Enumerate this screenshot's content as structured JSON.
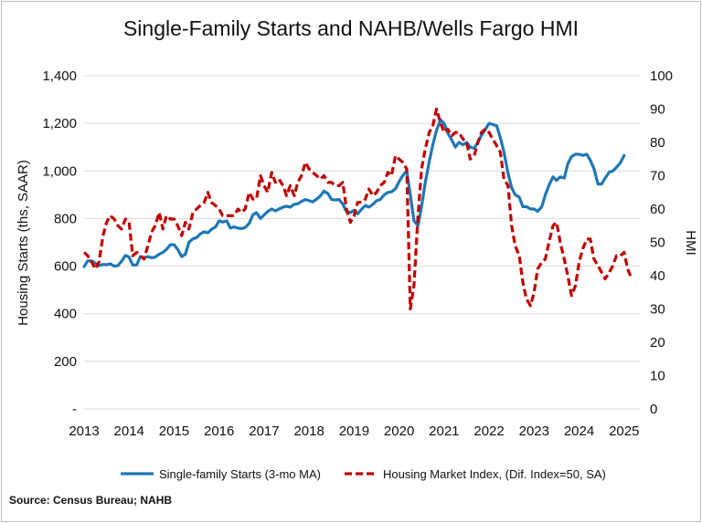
{
  "chart_data": {
    "type": "line",
    "title": "Single-Family Starts and NAHB/Wells Fargo HMI",
    "xlabel": "",
    "ylabel_left": "Housing Starts (ths, SAAR)",
    "ylabel_right": "HMI",
    "source": "Source: Census Bureau; NAHB",
    "x_ticks": [
      "2013",
      "2014",
      "2015",
      "2016",
      "2017",
      "2018",
      "2019",
      "2020",
      "2021",
      "2022",
      "2023",
      "2024",
      "2025"
    ],
    "y_left_ticks": [
      "-",
      "200",
      "400",
      "600",
      "800",
      "1,000",
      "1,200",
      "1,400"
    ],
    "y_right_ticks": [
      "0",
      "10",
      "20",
      "30",
      "40",
      "50",
      "60",
      "70",
      "80",
      "90",
      "100"
    ],
    "ylim_left": [
      0,
      1400
    ],
    "ylim_right": [
      0,
      100
    ],
    "xlim": [
      2013,
      2025.35
    ],
    "grid": "horizontal",
    "legend_position": "bottom",
    "series": [
      {
        "name": "Single-family Starts (3-mo MA)",
        "axis": "left",
        "color": "#1f77b4",
        "style": "solid",
        "points": [
          [
            2013.0,
            598
          ],
          [
            2013.08,
            622
          ],
          [
            2013.17,
            622
          ],
          [
            2013.25,
            612
          ],
          [
            2013.33,
            602
          ],
          [
            2013.42,
            607
          ],
          [
            2013.5,
            606
          ],
          [
            2013.58,
            610
          ],
          [
            2013.67,
            600
          ],
          [
            2013.75,
            602
          ],
          [
            2013.83,
            620
          ],
          [
            2013.92,
            645
          ],
          [
            2014.0,
            638
          ],
          [
            2014.08,
            605
          ],
          [
            2014.17,
            605
          ],
          [
            2014.25,
            640
          ],
          [
            2014.33,
            635
          ],
          [
            2014.42,
            640
          ],
          [
            2014.5,
            635
          ],
          [
            2014.58,
            638
          ],
          [
            2014.67,
            650
          ],
          [
            2014.75,
            658
          ],
          [
            2014.83,
            670
          ],
          [
            2014.92,
            690
          ],
          [
            2015.0,
            690
          ],
          [
            2015.08,
            670
          ],
          [
            2015.17,
            640
          ],
          [
            2015.25,
            650
          ],
          [
            2015.33,
            700
          ],
          [
            2015.42,
            715
          ],
          [
            2015.5,
            720
          ],
          [
            2015.58,
            735
          ],
          [
            2015.67,
            745
          ],
          [
            2015.75,
            740
          ],
          [
            2015.83,
            755
          ],
          [
            2015.92,
            765
          ],
          [
            2016.0,
            790
          ],
          [
            2016.08,
            785
          ],
          [
            2016.17,
            790
          ],
          [
            2016.25,
            760
          ],
          [
            2016.33,
            765
          ],
          [
            2016.42,
            760
          ],
          [
            2016.5,
            758
          ],
          [
            2016.58,
            762
          ],
          [
            2016.67,
            780
          ],
          [
            2016.75,
            815
          ],
          [
            2016.83,
            825
          ],
          [
            2016.92,
            800
          ],
          [
            2017.0,
            815
          ],
          [
            2017.08,
            830
          ],
          [
            2017.17,
            840
          ],
          [
            2017.25,
            832
          ],
          [
            2017.33,
            840
          ],
          [
            2017.42,
            848
          ],
          [
            2017.5,
            852
          ],
          [
            2017.58,
            848
          ],
          [
            2017.67,
            860
          ],
          [
            2017.75,
            862
          ],
          [
            2017.83,
            872
          ],
          [
            2017.92,
            880
          ],
          [
            2018.0,
            875
          ],
          [
            2018.08,
            870
          ],
          [
            2018.17,
            882
          ],
          [
            2018.25,
            895
          ],
          [
            2018.33,
            915
          ],
          [
            2018.42,
            905
          ],
          [
            2018.5,
            880
          ],
          [
            2018.58,
            878
          ],
          [
            2018.67,
            880
          ],
          [
            2018.75,
            860
          ],
          [
            2018.83,
            830
          ],
          [
            2018.92,
            825
          ],
          [
            2019.0,
            835
          ],
          [
            2019.08,
            820
          ],
          [
            2019.17,
            840
          ],
          [
            2019.25,
            855
          ],
          [
            2019.33,
            848
          ],
          [
            2019.42,
            860
          ],
          [
            2019.5,
            875
          ],
          [
            2019.58,
            880
          ],
          [
            2019.67,
            900
          ],
          [
            2019.75,
            910
          ],
          [
            2019.83,
            912
          ],
          [
            2019.92,
            925
          ],
          [
            2020.0,
            955
          ],
          [
            2020.08,
            980
          ],
          [
            2020.17,
            1000
          ],
          [
            2020.25,
            900
          ],
          [
            2020.33,
            790
          ],
          [
            2020.42,
            770
          ],
          [
            2020.5,
            850
          ],
          [
            2020.58,
            950
          ],
          [
            2020.67,
            1040
          ],
          [
            2020.75,
            1110
          ],
          [
            2020.83,
            1170
          ],
          [
            2020.92,
            1215
          ],
          [
            2021.0,
            1200
          ],
          [
            2021.08,
            1160
          ],
          [
            2021.17,
            1130
          ],
          [
            2021.25,
            1100
          ],
          [
            2021.33,
            1120
          ],
          [
            2021.42,
            1110
          ],
          [
            2021.5,
            1120
          ],
          [
            2021.58,
            1100
          ],
          [
            2021.67,
            1095
          ],
          [
            2021.75,
            1120
          ],
          [
            2021.83,
            1150
          ],
          [
            2021.92,
            1175
          ],
          [
            2022.0,
            1200
          ],
          [
            2022.08,
            1195
          ],
          [
            2022.17,
            1190
          ],
          [
            2022.25,
            1140
          ],
          [
            2022.33,
            1080
          ],
          [
            2022.42,
            990
          ],
          [
            2022.5,
            930
          ],
          [
            2022.58,
            900
          ],
          [
            2022.67,
            890
          ],
          [
            2022.75,
            850
          ],
          [
            2022.83,
            850
          ],
          [
            2022.92,
            840
          ],
          [
            2023.0,
            840
          ],
          [
            2023.08,
            830
          ],
          [
            2023.17,
            850
          ],
          [
            2023.25,
            900
          ],
          [
            2023.33,
            940
          ],
          [
            2023.42,
            975
          ],
          [
            2023.5,
            960
          ],
          [
            2023.58,
            975
          ],
          [
            2023.67,
            970
          ],
          [
            2023.75,
            1030
          ],
          [
            2023.83,
            1060
          ],
          [
            2023.92,
            1070
          ],
          [
            2024.0,
            1070
          ],
          [
            2024.08,
            1065
          ],
          [
            2024.17,
            1070
          ],
          [
            2024.25,
            1045
          ],
          [
            2024.33,
            1010
          ],
          [
            2024.42,
            945
          ],
          [
            2024.5,
            945
          ],
          [
            2024.58,
            970
          ],
          [
            2024.67,
            995
          ],
          [
            2024.75,
            1000
          ],
          [
            2024.83,
            1015
          ],
          [
            2024.92,
            1035
          ],
          [
            2025.0,
            1065
          ]
        ]
      },
      {
        "name": "Housing Market Index, (Dif. Index=50, SA)",
        "axis": "right",
        "color": "#c00000",
        "style": "dashed",
        "points": [
          [
            2013.0,
            47
          ],
          [
            2013.08,
            46
          ],
          [
            2013.17,
            44
          ],
          [
            2013.25,
            42
          ],
          [
            2013.33,
            44
          ],
          [
            2013.42,
            52
          ],
          [
            2013.5,
            56
          ],
          [
            2013.58,
            58
          ],
          [
            2013.67,
            57
          ],
          [
            2013.75,
            55
          ],
          [
            2013.83,
            54
          ],
          [
            2013.92,
            57
          ],
          [
            2014.0,
            56
          ],
          [
            2014.08,
            46
          ],
          [
            2014.17,
            47
          ],
          [
            2014.25,
            46
          ],
          [
            2014.33,
            45
          ],
          [
            2014.42,
            49
          ],
          [
            2014.5,
            53
          ],
          [
            2014.58,
            55
          ],
          [
            2014.67,
            59
          ],
          [
            2014.75,
            54
          ],
          [
            2014.83,
            58
          ],
          [
            2014.92,
            57
          ],
          [
            2015.0,
            57
          ],
          [
            2015.08,
            55
          ],
          [
            2015.17,
            52
          ],
          [
            2015.25,
            56
          ],
          [
            2015.33,
            54
          ],
          [
            2015.42,
            59
          ],
          [
            2015.5,
            60
          ],
          [
            2015.58,
            61
          ],
          [
            2015.67,
            62
          ],
          [
            2015.75,
            65
          ],
          [
            2015.83,
            62
          ],
          [
            2015.92,
            61
          ],
          [
            2016.0,
            60
          ],
          [
            2016.08,
            58
          ],
          [
            2016.17,
            58
          ],
          [
            2016.25,
            58
          ],
          [
            2016.33,
            58
          ],
          [
            2016.42,
            60
          ],
          [
            2016.5,
            59
          ],
          [
            2016.58,
            60
          ],
          [
            2016.67,
            65
          ],
          [
            2016.75,
            63
          ],
          [
            2016.83,
            63
          ],
          [
            2016.92,
            70
          ],
          [
            2017.0,
            67
          ],
          [
            2017.08,
            65
          ],
          [
            2017.17,
            71
          ],
          [
            2017.25,
            68
          ],
          [
            2017.33,
            69
          ],
          [
            2017.42,
            67
          ],
          [
            2017.5,
            64
          ],
          [
            2017.58,
            67
          ],
          [
            2017.67,
            64
          ],
          [
            2017.75,
            68
          ],
          [
            2017.83,
            70
          ],
          [
            2017.92,
            74
          ],
          [
            2018.0,
            72
          ],
          [
            2018.08,
            71
          ],
          [
            2018.17,
            70
          ],
          [
            2018.25,
            69
          ],
          [
            2018.33,
            70
          ],
          [
            2018.42,
            68
          ],
          [
            2018.5,
            68
          ],
          [
            2018.58,
            67
          ],
          [
            2018.67,
            67
          ],
          [
            2018.75,
            68
          ],
          [
            2018.83,
            60
          ],
          [
            2018.92,
            56
          ],
          [
            2019.0,
            58
          ],
          [
            2019.08,
            62
          ],
          [
            2019.17,
            62
          ],
          [
            2019.25,
            63
          ],
          [
            2019.33,
            66
          ],
          [
            2019.42,
            64
          ],
          [
            2019.5,
            65
          ],
          [
            2019.58,
            67
          ],
          [
            2019.67,
            68
          ],
          [
            2019.75,
            71
          ],
          [
            2019.83,
            70
          ],
          [
            2019.92,
            76
          ],
          [
            2020.0,
            75
          ],
          [
            2020.08,
            74
          ],
          [
            2020.17,
            72
          ],
          [
            2020.25,
            30
          ],
          [
            2020.33,
            37
          ],
          [
            2020.42,
            58
          ],
          [
            2020.5,
            72
          ],
          [
            2020.58,
            78
          ],
          [
            2020.67,
            83
          ],
          [
            2020.75,
            85
          ],
          [
            2020.83,
            90
          ],
          [
            2020.92,
            86
          ],
          [
            2021.0,
            83
          ],
          [
            2021.08,
            84
          ],
          [
            2021.17,
            82
          ],
          [
            2021.25,
            83
          ],
          [
            2021.33,
            83
          ],
          [
            2021.42,
            81
          ],
          [
            2021.5,
            80
          ],
          [
            2021.58,
            75
          ],
          [
            2021.67,
            76
          ],
          [
            2021.75,
            80
          ],
          [
            2021.83,
            83
          ],
          [
            2021.92,
            84
          ],
          [
            2022.0,
            83
          ],
          [
            2022.08,
            81
          ],
          [
            2022.17,
            79
          ],
          [
            2022.25,
            77
          ],
          [
            2022.33,
            69
          ],
          [
            2022.42,
            67
          ],
          [
            2022.5,
            55
          ],
          [
            2022.58,
            49
          ],
          [
            2022.67,
            46
          ],
          [
            2022.75,
            38
          ],
          [
            2022.83,
            33
          ],
          [
            2022.92,
            31
          ],
          [
            2023.0,
            35
          ],
          [
            2023.08,
            42
          ],
          [
            2023.17,
            44
          ],
          [
            2023.25,
            45
          ],
          [
            2023.33,
            50
          ],
          [
            2023.42,
            55
          ],
          [
            2023.5,
            56
          ],
          [
            2023.58,
            50
          ],
          [
            2023.67,
            45
          ],
          [
            2023.75,
            40
          ],
          [
            2023.83,
            34
          ],
          [
            2023.92,
            37
          ],
          [
            2024.0,
            44
          ],
          [
            2024.08,
            48
          ],
          [
            2024.17,
            51
          ],
          [
            2024.25,
            51
          ],
          [
            2024.33,
            45
          ],
          [
            2024.42,
            43
          ],
          [
            2024.5,
            41
          ],
          [
            2024.58,
            39
          ],
          [
            2024.67,
            41
          ],
          [
            2024.75,
            43
          ],
          [
            2024.83,
            46
          ],
          [
            2024.92,
            46
          ],
          [
            2025.0,
            47
          ],
          [
            2025.08,
            42
          ],
          [
            2025.17,
            39
          ]
        ]
      }
    ]
  }
}
